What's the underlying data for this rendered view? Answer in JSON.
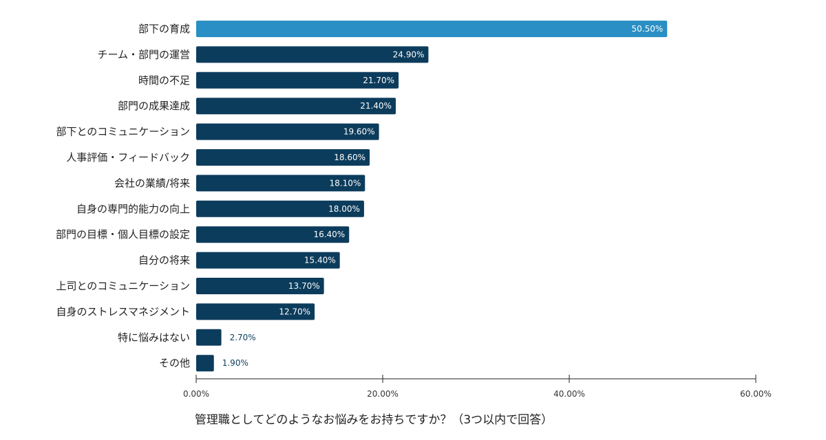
{
  "chart_data": {
    "type": "bar",
    "orientation": "horizontal",
    "categories": [
      "部下の育成",
      "チーム・部門の運営",
      "時間の不足",
      "部門の成果達成",
      "部下とのコミュニケーション",
      "人事評価・フィードバック",
      "会社の業績/将来",
      "自身の専門的能力の向上",
      "部門の目標・個人目標の設定",
      "自分の将来",
      "上司とのコミュニケーション",
      "自身のストレスマネジメント",
      "特に悩みはない",
      "その他"
    ],
    "values": [
      50.5,
      24.9,
      21.7,
      21.4,
      19.6,
      18.6,
      18.1,
      18.0,
      16.4,
      15.4,
      13.7,
      12.7,
      2.7,
      1.9
    ],
    "data_labels": [
      "50.50%",
      "24.90%",
      "21.70%",
      "21.40%",
      "19.60%",
      "18.60%",
      "18.10%",
      "18.00%",
      "16.40%",
      "15.40%",
      "13.70%",
      "12.70%",
      "2.70%",
      "1.90%"
    ],
    "title": "",
    "xlabel": "管理職としてどのようなお悩みをお持ちですか？（3つ以内で回答）",
    "ylabel": "",
    "xlim": [
      0,
      60
    ],
    "x_ticks": [
      0,
      20,
      40,
      60
    ],
    "x_tick_labels": [
      "0.00%",
      "20.00%",
      "40.00%",
      "60.00%"
    ],
    "highlight_index": 0,
    "colors": {
      "highlight": "#2a8fc4",
      "bar": "#0c3c5c",
      "label_inside": "#ffffff",
      "label_outside": "#0c3c5c",
      "category_text": "#222222",
      "axis": "#222222",
      "tick_text": "#333333",
      "xlabel_text": "#222222"
    },
    "grid": false,
    "legend": "none"
  }
}
